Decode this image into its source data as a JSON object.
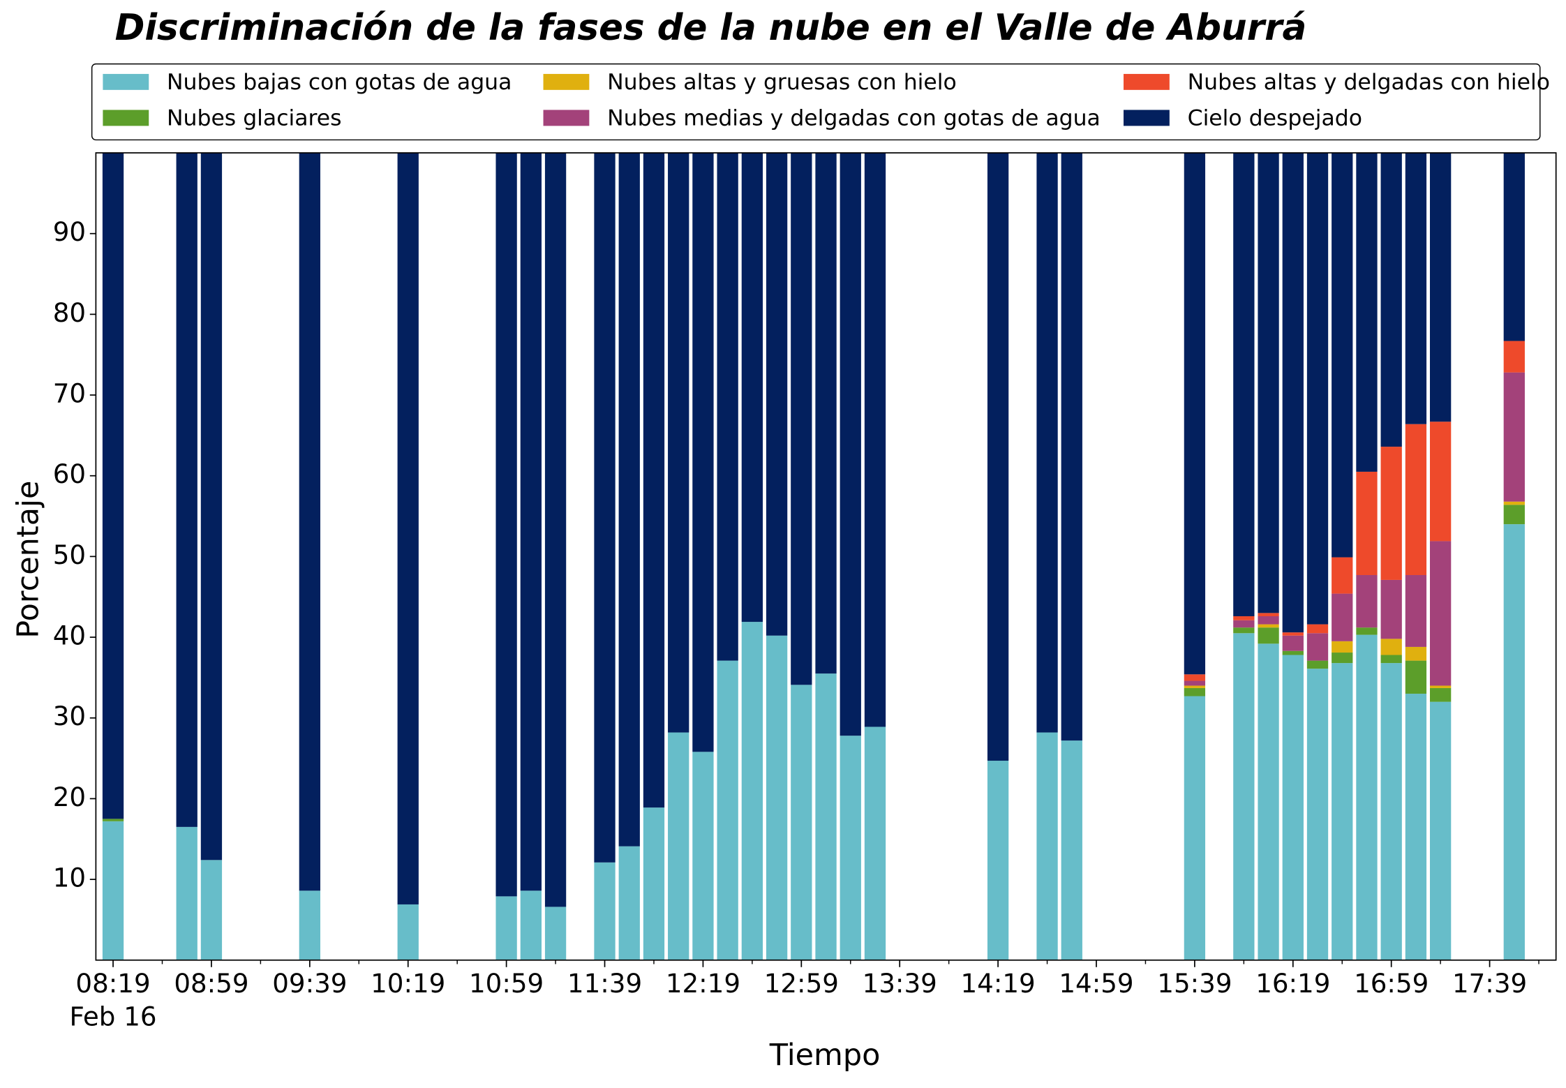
{
  "chart_data": {
    "type": "stacked_bar",
    "title": "Discriminación de la fases de la nube en el Valle de Aburrá",
    "xlabel": "Tiempo",
    "ylabel": "Porcentaje",
    "date_label": "Feb 16",
    "x": [
      "08:19",
      "08:49",
      "08:59",
      "09:39",
      "10:19",
      "10:59",
      "11:09",
      "11:19",
      "11:39",
      "11:49",
      "11:59",
      "12:09",
      "12:19",
      "12:29",
      "12:39",
      "12:49",
      "12:59",
      "13:09",
      "13:19",
      "13:29",
      "14:19",
      "14:39",
      "14:49",
      "15:39",
      "15:59",
      "16:09",
      "16:19",
      "16:29",
      "16:39",
      "16:49",
      "16:59",
      "17:09",
      "17:19",
      "17:49"
    ],
    "series": [
      {
        "name": "Nubes bajas con gotas de agua",
        "color": "#67bdc9",
        "values": [
          17.2,
          16.5,
          12.4,
          8.6,
          6.9,
          7.9,
          8.6,
          6.6,
          12.1,
          14.1,
          18.9,
          28.2,
          25.8,
          37.1,
          41.9,
          40.2,
          34.1,
          35.5,
          27.8,
          28.9,
          24.7,
          28.2,
          27.2,
          32.7,
          40.5,
          39.2,
          37.8,
          36.1,
          36.8,
          40.3,
          36.8,
          33.0,
          32.0,
          54.0
        ]
      },
      {
        "name": "Nubes glaciares",
        "color": "#5c9e2a",
        "values": [
          0.3,
          0,
          0,
          0,
          0,
          0,
          0,
          0,
          0,
          0,
          0,
          0,
          0,
          0,
          0,
          0,
          0,
          0,
          0,
          0,
          0,
          0,
          0,
          1.0,
          0.7,
          2.0,
          0.5,
          1.0,
          1.3,
          0.9,
          1.0,
          4.1,
          1.7,
          2.4
        ]
      },
      {
        "name": "Nubes altas y gruesas con hielo",
        "color": "#e0b00f",
        "values": [
          0,
          0,
          0,
          0,
          0,
          0,
          0,
          0,
          0,
          0,
          0,
          0,
          0,
          0,
          0,
          0,
          0,
          0,
          0,
          0,
          0,
          0,
          0,
          0.3,
          0,
          0.4,
          0,
          0,
          1.4,
          0,
          2.0,
          1.7,
          0.3,
          0.4
        ]
      },
      {
        "name": "Nubes medias y delgadas con gotas de agua",
        "color": "#a3427a",
        "values": [
          0,
          0,
          0,
          0,
          0,
          0,
          0,
          0,
          0,
          0,
          0,
          0,
          0,
          0,
          0,
          0,
          0,
          0,
          0,
          0,
          0,
          0,
          0,
          0.6,
          0.9,
          1.0,
          1.9,
          3.4,
          5.9,
          6.5,
          7.3,
          8.9,
          17.9,
          16.0
        ]
      },
      {
        "name": "Nubes altas y delgadas con hielo",
        "color": "#ee4a2b",
        "values": [
          0,
          0,
          0,
          0,
          0,
          0,
          0,
          0,
          0,
          0,
          0,
          0,
          0,
          0,
          0,
          0,
          0,
          0,
          0,
          0,
          0,
          0,
          0,
          0.8,
          0.5,
          0.4,
          0.4,
          1.1,
          4.5,
          12.8,
          16.5,
          18.7,
          14.8,
          3.9
        ]
      },
      {
        "name": "Cielo despejado",
        "color": "#03205e",
        "values": [
          82.5,
          83.5,
          87.6,
          91.4,
          93.1,
          92.1,
          91.4,
          93.4,
          87.9,
          85.9,
          81.1,
          71.8,
          74.2,
          62.9,
          58.1,
          59.8,
          65.9,
          64.5,
          72.2,
          71.1,
          75.3,
          71.8,
          72.8,
          64.6,
          57.4,
          57.0,
          59.4,
          58.4,
          50.1,
          39.5,
          36.4,
          33.6,
          33.3,
          23.3
        ]
      }
    ],
    "xlim": [
      "08:12",
      "18:06"
    ],
    "xticks": [
      "08:19",
      "08:59",
      "09:39",
      "10:19",
      "10:59",
      "11:39",
      "12:19",
      "12:59",
      "13:39",
      "14:19",
      "14:59",
      "15:39",
      "16:19",
      "16:59",
      "17:39"
    ],
    "xticks_minor": [
      "08:39",
      "09:19",
      "09:59",
      "10:39",
      "11:19",
      "11:59",
      "12:39",
      "13:19",
      "13:59",
      "14:39",
      "15:19",
      "15:59",
      "16:39",
      "17:19",
      "17:59"
    ],
    "ylim": [
      0,
      100
    ],
    "yticks": [
      10,
      20,
      30,
      40,
      50,
      60,
      70,
      80,
      90
    ],
    "bar_width_minutes": 8.6,
    "legend": {
      "position": "top",
      "columns": 3
    }
  }
}
